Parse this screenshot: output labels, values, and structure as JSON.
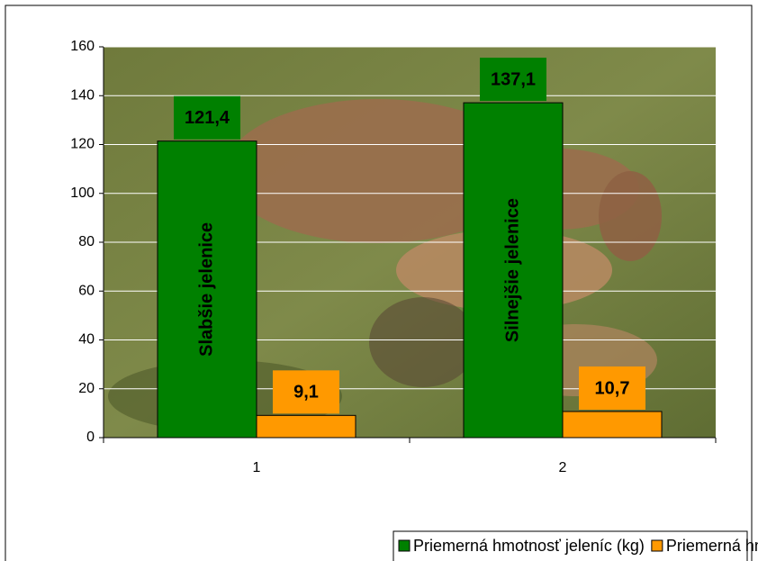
{
  "chart_data": {
    "type": "bar",
    "categories": [
      "1",
      "2"
    ],
    "annotations": [
      "Slabšie jelenice",
      "Silnejšie jelenice"
    ],
    "series": [
      {
        "name": "Priemerná hmotnosť jeleníc (kg)",
        "color": "#008000",
        "values": [
          121.4,
          137.1
        ],
        "value_labels": [
          "121,4",
          "137,1"
        ]
      },
      {
        "name": "Priemerná hmotnosť mláďat (kg)",
        "color": "#ff9900",
        "values": [
          9.1,
          10.7
        ],
        "value_labels": [
          "9,1",
          "10,7"
        ]
      }
    ],
    "ylim": [
      0,
      160
    ],
    "yticks": [
      0,
      20,
      40,
      60,
      80,
      100,
      120,
      140,
      160
    ],
    "grid": true
  }
}
